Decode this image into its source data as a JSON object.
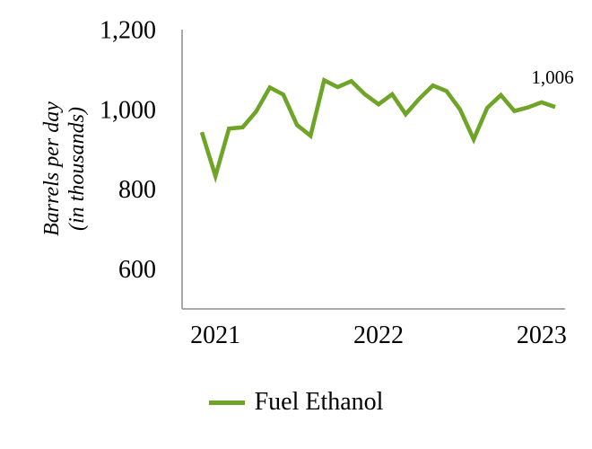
{
  "chart_data": {
    "type": "line",
    "title": "",
    "ylabel_line1": "Barrels per day",
    "ylabel_line2": "(in thousands)",
    "series": [
      {
        "name": "Fuel Ethanol",
        "color": "#6EA528",
        "values": [
          943,
          833,
          952,
          955,
          995,
          1055,
          1037,
          961,
          934,
          1073,
          1056,
          1071,
          1038,
          1013,
          1038,
          988,
          1027,
          1060,
          1046,
          1000,
          925,
          1004,
          1036,
          996,
          1005,
          1018,
          1006
        ]
      }
    ],
    "x_axis": {
      "tick_labels": [
        "2021",
        "2022",
        "2023"
      ],
      "tick_point_indices": [
        1,
        13,
        25
      ]
    },
    "y_axis": {
      "min": 500,
      "max": 1200,
      "tick_values": [
        1200,
        1000,
        800,
        600
      ],
      "tick_labels": [
        "1,200",
        "1,000",
        "800",
        "600"
      ]
    },
    "end_label": "1,006",
    "axis_color": "#9E9E9E",
    "text_color": "#000000",
    "grid": "off",
    "legend_position": "bottom"
  }
}
